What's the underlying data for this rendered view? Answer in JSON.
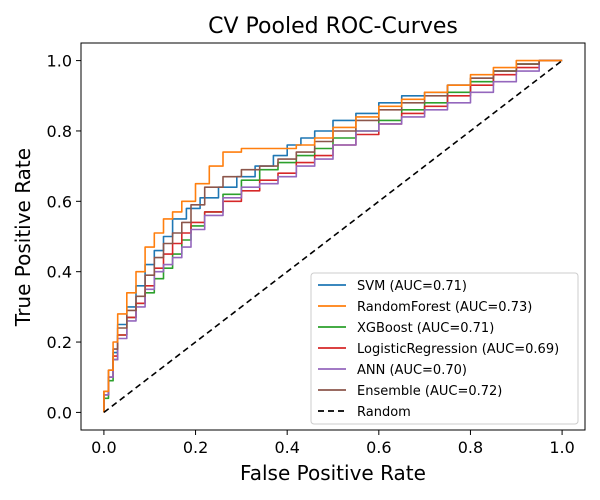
{
  "chart_data": {
    "type": "line",
    "title": "CV Pooled ROC-Curves",
    "xlabel": "False Positive Rate",
    "ylabel": "True Positive Rate",
    "xlim": [
      -0.05,
      1.05
    ],
    "ylim": [
      -0.05,
      1.05
    ],
    "xticks": [
      "0.0",
      "0.2",
      "0.4",
      "0.6",
      "0.8",
      "1.0"
    ],
    "yticks": [
      "0.0",
      "0.2",
      "0.4",
      "0.6",
      "0.8",
      "1.0"
    ],
    "grid": false,
    "legend_position": "lower-right",
    "series": [
      {
        "name": "SVM (AUC=0.71)",
        "color": "#1f77b4",
        "style": "solid",
        "x": [
          0.0,
          0.01,
          0.02,
          0.03,
          0.05,
          0.07,
          0.09,
          0.11,
          0.13,
          0.15,
          0.18,
          0.21,
          0.25,
          0.29,
          0.33,
          0.37,
          0.4,
          0.43,
          0.46,
          0.5,
          0.55,
          0.6,
          0.65,
          0.7,
          0.75,
          0.8,
          0.85,
          0.9,
          0.95,
          1.0
        ],
        "y": [
          0.0,
          0.05,
          0.1,
          0.17,
          0.25,
          0.3,
          0.36,
          0.42,
          0.46,
          0.5,
          0.55,
          0.58,
          0.61,
          0.64,
          0.67,
          0.7,
          0.73,
          0.76,
          0.78,
          0.8,
          0.83,
          0.85,
          0.88,
          0.9,
          0.91,
          0.93,
          0.95,
          0.97,
          0.99,
          1.0
        ]
      },
      {
        "name": "RandomForest (AUC=0.73)",
        "color": "#ff7f0e",
        "style": "solid",
        "x": [
          0.0,
          0.01,
          0.02,
          0.03,
          0.05,
          0.07,
          0.09,
          0.11,
          0.13,
          0.15,
          0.17,
          0.2,
          0.23,
          0.26,
          0.3,
          0.34,
          0.38,
          0.42,
          0.46,
          0.5,
          0.55,
          0.6,
          0.65,
          0.7,
          0.75,
          0.8,
          0.85,
          0.9,
          0.95,
          1.0
        ],
        "y": [
          0.0,
          0.06,
          0.12,
          0.2,
          0.28,
          0.34,
          0.4,
          0.47,
          0.51,
          0.55,
          0.57,
          0.6,
          0.65,
          0.7,
          0.74,
          0.75,
          0.75,
          0.75,
          0.76,
          0.78,
          0.81,
          0.84,
          0.87,
          0.89,
          0.91,
          0.93,
          0.96,
          0.98,
          1.0,
          1.0
        ]
      },
      {
        "name": "XGBoost (AUC=0.71)",
        "color": "#2ca02c",
        "style": "solid",
        "x": [
          0.0,
          0.01,
          0.02,
          0.03,
          0.05,
          0.07,
          0.09,
          0.11,
          0.13,
          0.15,
          0.17,
          0.19,
          0.22,
          0.26,
          0.3,
          0.34,
          0.38,
          0.42,
          0.46,
          0.5,
          0.55,
          0.6,
          0.65,
          0.7,
          0.75,
          0.8,
          0.85,
          0.9,
          0.95,
          1.0
        ],
        "y": [
          0.0,
          0.04,
          0.09,
          0.15,
          0.22,
          0.27,
          0.31,
          0.34,
          0.38,
          0.41,
          0.45,
          0.49,
          0.53,
          0.57,
          0.62,
          0.66,
          0.69,
          0.71,
          0.73,
          0.75,
          0.78,
          0.8,
          0.83,
          0.86,
          0.88,
          0.91,
          0.94,
          0.97,
          0.99,
          1.0
        ]
      },
      {
        "name": "LogisticRegression (AUC=0.69)",
        "color": "#d62728",
        "style": "solid",
        "x": [
          0.0,
          0.01,
          0.02,
          0.03,
          0.05,
          0.07,
          0.09,
          0.11,
          0.13,
          0.15,
          0.17,
          0.19,
          0.22,
          0.26,
          0.3,
          0.34,
          0.38,
          0.42,
          0.46,
          0.5,
          0.55,
          0.6,
          0.65,
          0.7,
          0.75,
          0.8,
          0.85,
          0.9,
          0.95,
          1.0
        ],
        "y": [
          0.0,
          0.05,
          0.1,
          0.16,
          0.22,
          0.27,
          0.31,
          0.36,
          0.41,
          0.45,
          0.48,
          0.51,
          0.54,
          0.57,
          0.6,
          0.63,
          0.66,
          0.68,
          0.71,
          0.73,
          0.76,
          0.79,
          0.82,
          0.85,
          0.87,
          0.9,
          0.93,
          0.96,
          0.98,
          1.0
        ]
      },
      {
        "name": "ANN (AUC=0.70)",
        "color": "#9467bd",
        "style": "solid",
        "x": [
          0.0,
          0.01,
          0.02,
          0.03,
          0.05,
          0.07,
          0.09,
          0.11,
          0.13,
          0.15,
          0.17,
          0.19,
          0.22,
          0.26,
          0.3,
          0.34,
          0.38,
          0.42,
          0.46,
          0.5,
          0.55,
          0.6,
          0.65,
          0.7,
          0.75,
          0.8,
          0.85,
          0.9,
          0.95,
          1.0
        ],
        "y": [
          0.0,
          0.05,
          0.1,
          0.15,
          0.21,
          0.26,
          0.3,
          0.35,
          0.4,
          0.42,
          0.44,
          0.47,
          0.52,
          0.56,
          0.61,
          0.64,
          0.65,
          0.67,
          0.7,
          0.72,
          0.76,
          0.8,
          0.82,
          0.84,
          0.86,
          0.88,
          0.91,
          0.94,
          0.97,
          1.0
        ]
      },
      {
        "name": "Ensemble (AUC=0.72)",
        "color": "#8c564b",
        "style": "solid",
        "x": [
          0.0,
          0.01,
          0.02,
          0.03,
          0.05,
          0.07,
          0.09,
          0.11,
          0.13,
          0.15,
          0.17,
          0.19,
          0.22,
          0.26,
          0.3,
          0.34,
          0.38,
          0.42,
          0.46,
          0.5,
          0.55,
          0.6,
          0.65,
          0.7,
          0.75,
          0.8,
          0.85,
          0.9,
          0.95,
          1.0
        ],
        "y": [
          0.0,
          0.06,
          0.12,
          0.18,
          0.24,
          0.29,
          0.33,
          0.39,
          0.44,
          0.48,
          0.51,
          0.54,
          0.59,
          0.64,
          0.67,
          0.69,
          0.7,
          0.72,
          0.74,
          0.77,
          0.8,
          0.83,
          0.86,
          0.88,
          0.9,
          0.93,
          0.95,
          0.97,
          0.99,
          1.0
        ]
      },
      {
        "name": "Random",
        "color": "#000000",
        "style": "dashed",
        "x": [
          0.0,
          1.0
        ],
        "y": [
          0.0,
          1.0
        ]
      }
    ]
  }
}
